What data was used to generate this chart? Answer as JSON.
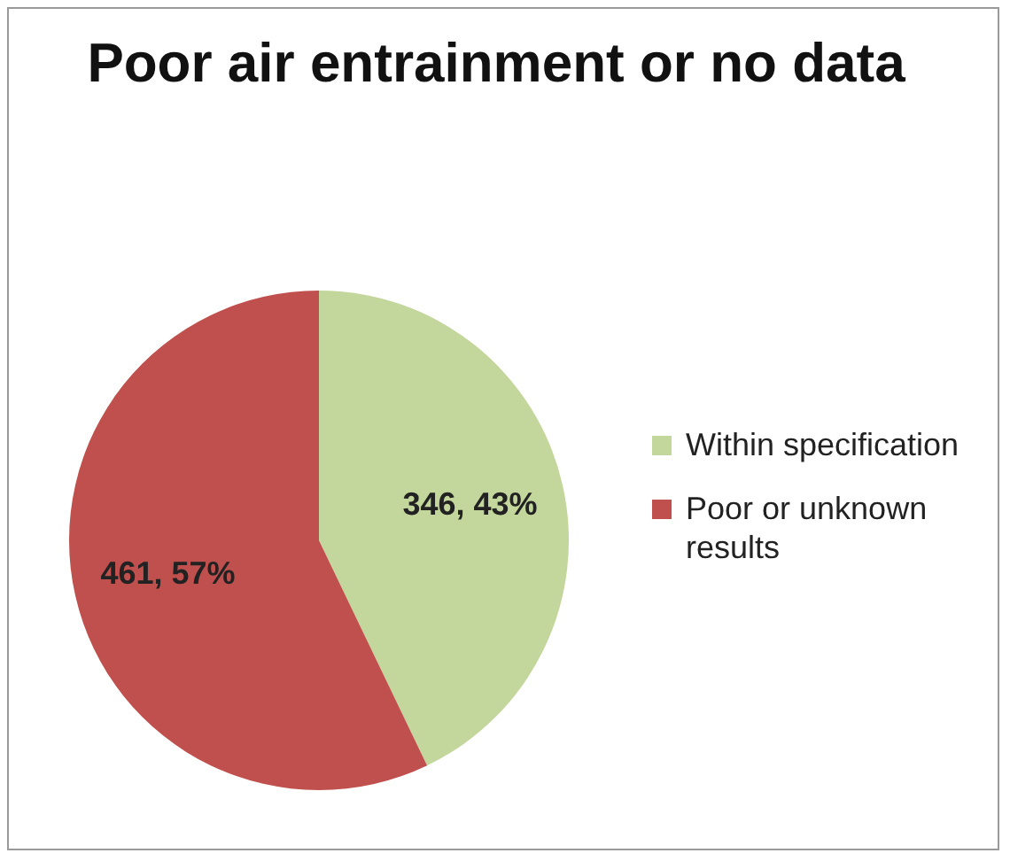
{
  "chart_data": {
    "type": "pie",
    "title": "Poor air entrainment or no data",
    "categories": [
      "Within specification",
      "Poor or unknown results"
    ],
    "values": [
      346,
      461
    ],
    "colors": [
      "#c3d69b",
      "#c0504d"
    ],
    "value_labels": [
      "346, 43%",
      "461, 57%"
    ],
    "legend": "right"
  }
}
